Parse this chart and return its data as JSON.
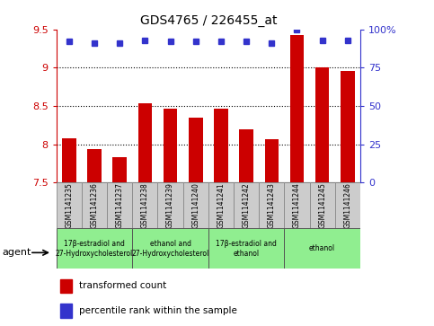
{
  "title": "GDS4765 / 226455_at",
  "samples": [
    "GSM1141235",
    "GSM1141236",
    "GSM1141237",
    "GSM1141238",
    "GSM1141239",
    "GSM1141240",
    "GSM1141241",
    "GSM1141242",
    "GSM1141243",
    "GSM1141244",
    "GSM1141245",
    "GSM1141246"
  ],
  "transformed_counts": [
    8.08,
    7.94,
    7.83,
    8.54,
    8.47,
    8.35,
    8.47,
    8.19,
    8.07,
    9.43,
    9.0,
    8.96
  ],
  "percentile_ranks": [
    92,
    91,
    91,
    93,
    92,
    92,
    92,
    92,
    91,
    100,
    93,
    93
  ],
  "ylim_left": [
    7.5,
    9.5
  ],
  "ylim_right": [
    0,
    100
  ],
  "yticks_left": [
    7.5,
    8.0,
    8.5,
    9.0,
    9.5
  ],
  "yticks_right": [
    0,
    25,
    50,
    75,
    100
  ],
  "ytick_labels_right": [
    "0",
    "25",
    "50",
    "75",
    "100%"
  ],
  "dotted_lines": [
    8.0,
    8.5,
    9.0
  ],
  "bar_color": "#cc0000",
  "dot_color": "#3333cc",
  "agent_groups": [
    {
      "label": "17β-estradiol and\n27-Hydroxycholesterol",
      "start": 0,
      "end": 3,
      "color": "#90EE90"
    },
    {
      "label": "ethanol and\n27-Hydroxycholesterol",
      "start": 3,
      "end": 6,
      "color": "#90EE90"
    },
    {
      "label": "17β-estradiol and\nethanol",
      "start": 6,
      "end": 9,
      "color": "#90EE90"
    },
    {
      "label": "ethanol",
      "start": 9,
      "end": 12,
      "color": "#90EE90"
    }
  ],
  "legend_red_label": "transformed count",
  "legend_blue_label": "percentile rank within the sample",
  "cell_color": "#cccccc",
  "plot_bg": "#ffffff",
  "spine_color": "#000000"
}
